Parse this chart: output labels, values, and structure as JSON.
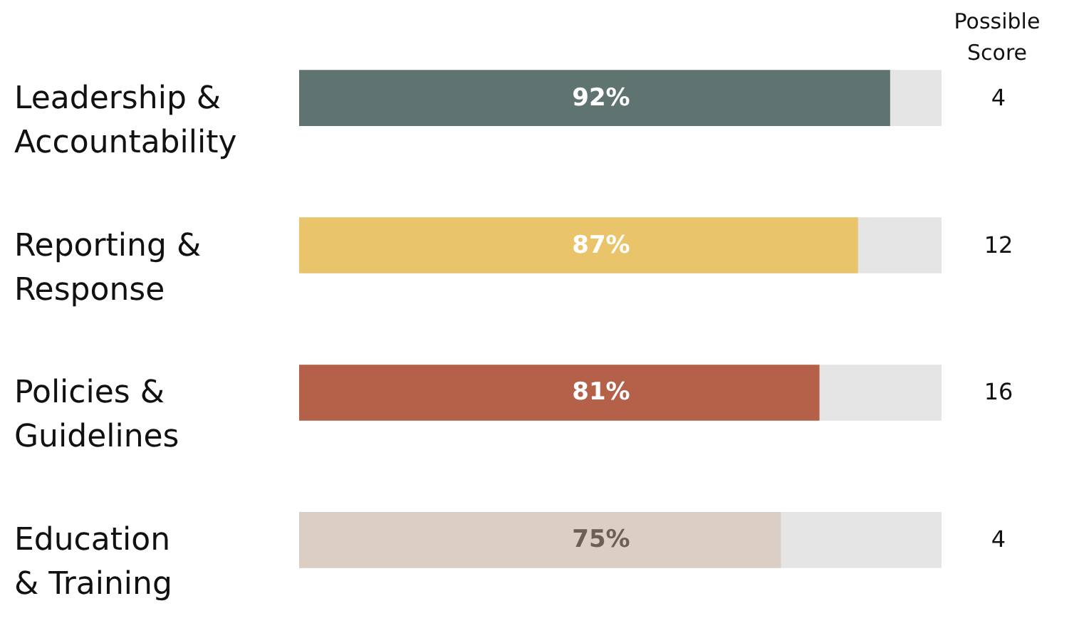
{
  "chart_data": {
    "type": "bar",
    "orientation": "horizontal",
    "categories": [
      "Leadership &\nAccountability",
      "Reporting &\nResponse",
      "Policies &\nGuidelines",
      "Education\n& Training"
    ],
    "values": [
      92,
      87,
      81,
      75
    ],
    "value_labels": [
      "92%",
      "87%",
      "81%",
      "75%"
    ],
    "colors": [
      "#5f7470",
      "#e9c46a",
      "#b5614a",
      "#dbcec5"
    ],
    "xlim": [
      0,
      100
    ],
    "grid": false,
    "tick_labels": false,
    "annotations": [
      "Possible\nScore",
      "4",
      "12",
      "16",
      "4"
    ]
  }
}
